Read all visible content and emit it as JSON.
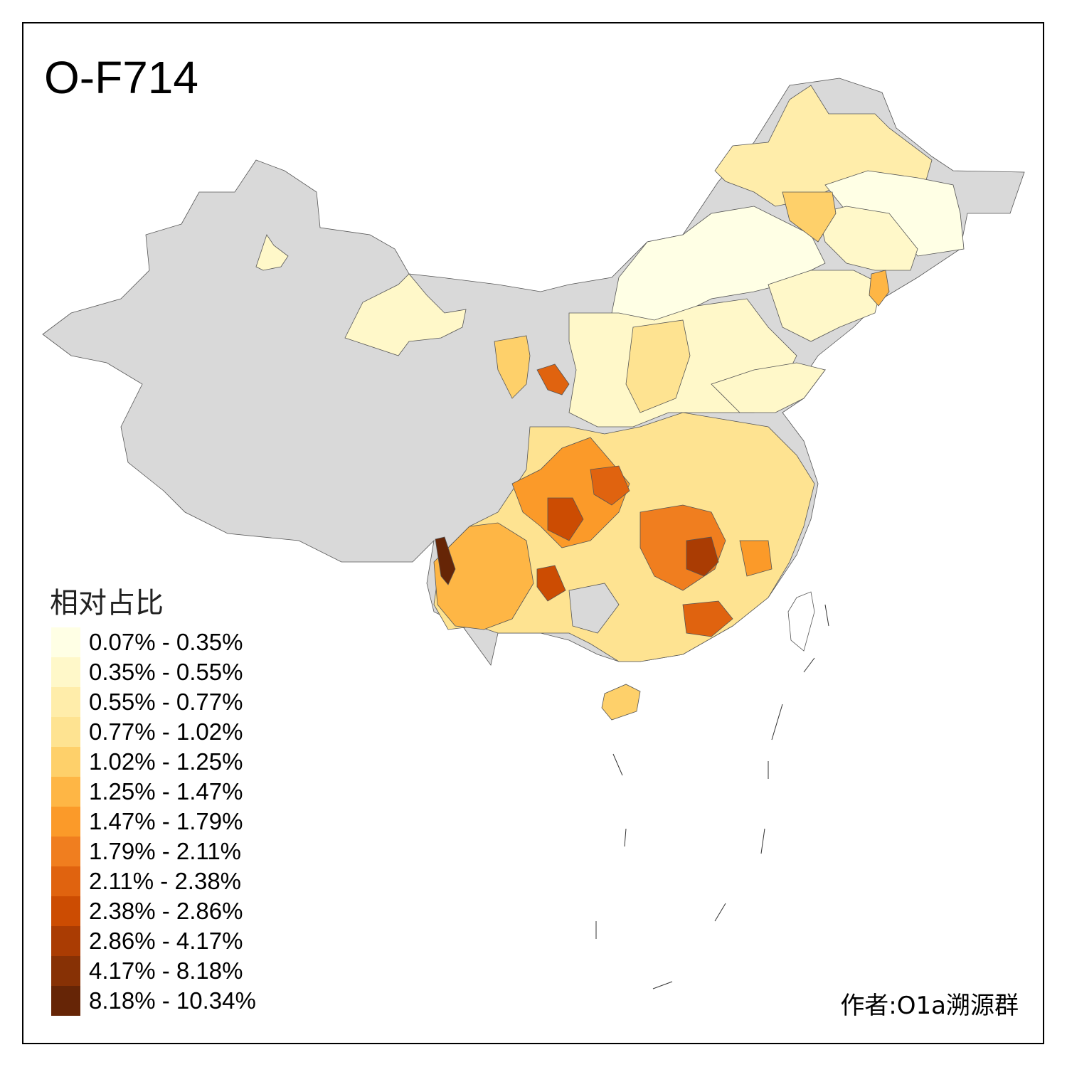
{
  "title": "O-F714",
  "legend": {
    "title": "相对占比",
    "no_data_color": "#D9D9D9",
    "items": [
      {
        "label": "0.07% - 0.35%",
        "color": "#FFFFE5"
      },
      {
        "label": "0.35% - 0.55%",
        "color": "#FFF8C9"
      },
      {
        "label": "0.55% - 0.77%",
        "color": "#FFEDAA"
      },
      {
        "label": "0.77% - 1.02%",
        "color": "#FEE391"
      },
      {
        "label": "1.02% - 1.25%",
        "color": "#FED06A"
      },
      {
        "label": "1.25% - 1.47%",
        "color": "#FEB645"
      },
      {
        "label": "1.47% - 1.79%",
        "color": "#FB9A29"
      },
      {
        "label": "1.79% - 2.11%",
        "color": "#F07E1F"
      },
      {
        "label": "2.11% - 2.38%",
        "color": "#E0630F"
      },
      {
        "label": "2.38% - 2.86%",
        "color": "#CC4C02"
      },
      {
        "label": "2.86% - 4.17%",
        "color": "#AA3C03"
      },
      {
        "label": "4.17% - 8.18%",
        "color": "#873105"
      },
      {
        "label": "8.18% - 10.34%",
        "color": "#662506"
      }
    ]
  },
  "credit": "作者:O1a溯源群"
}
